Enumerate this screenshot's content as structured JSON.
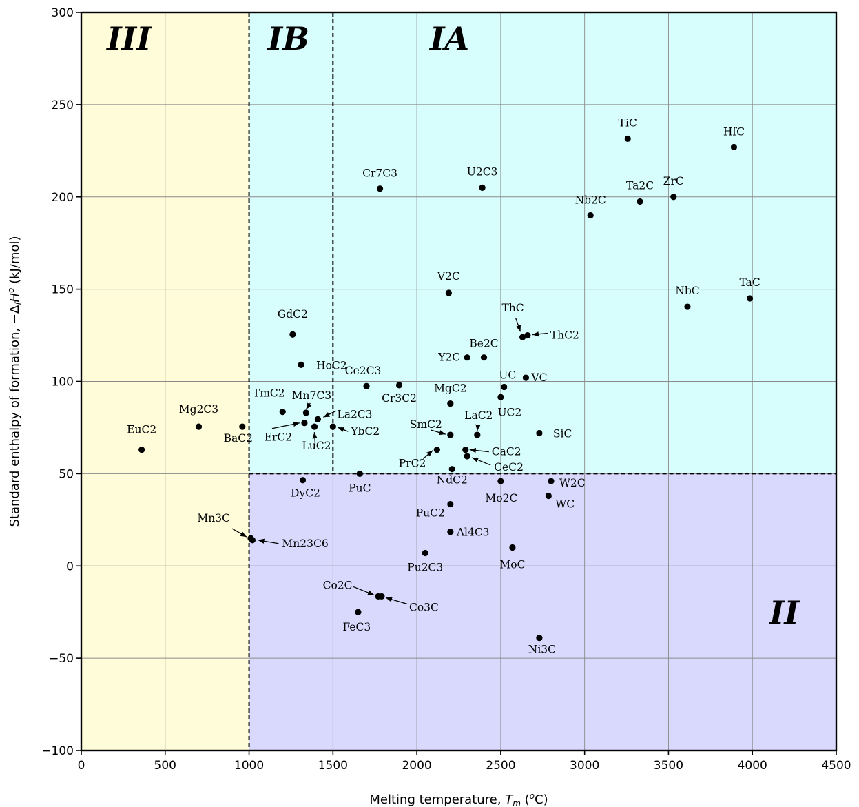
{
  "chart_data": {
    "type": "scatter",
    "title": "",
    "xlabel": "Melting temperature, ",
    "xlabel_var": "T",
    "xlabel_sub": "m",
    "xlabel_unit_open": " (",
    "xlabel_unit_sup": "o",
    "xlabel_unit_close": "C)",
    "ylabel": "Standard enthalpy of formation, −Δ",
    "ylabel_sub": "f",
    "ylabel_var": "H",
    "ylabel_sup": "o",
    "ylabel_unit": " (kJ/mol)",
    "xlim": [
      0,
      4500
    ],
    "ylim": [
      -100,
      300
    ],
    "xticks": [
      "0",
      "500",
      "1000",
      "1500",
      "2000",
      "2500",
      "3000",
      "3500",
      "4000",
      "4500"
    ],
    "yticks": [
      "−100",
      "−50",
      "0",
      "50",
      "100",
      "150",
      "200",
      "250",
      "300"
    ],
    "grid": true,
    "regions": [
      {
        "label": "III",
        "x_range": [
          0,
          1000
        ],
        "y_range": [
          -100,
          300
        ],
        "color": "#fffdd9"
      },
      {
        "label": "IB",
        "x_range": [
          1000,
          1500
        ],
        "y_range": [
          50,
          300
        ],
        "color": "#d8fdfd"
      },
      {
        "label": "IA",
        "x_range": [
          1500,
          4500
        ],
        "y_range": [
          50,
          300
        ],
        "color": "#d8fdfd"
      },
      {
        "label": "II",
        "x_range": [
          1000,
          4500
        ],
        "y_range": [
          -100,
          50
        ],
        "color": "#d9d9fd"
      }
    ],
    "points": [
      {
        "name": "EuC2",
        "x": 360,
        "y": 63
      },
      {
        "name": "Mg2C3",
        "x": 700,
        "y": 75.5
      },
      {
        "name": "BaC2",
        "x": 960,
        "y": 75.5
      },
      {
        "name": "GdC2",
        "x": 1260,
        "y": 125.5
      },
      {
        "name": "HoC2",
        "x": 1310,
        "y": 109
      },
      {
        "name": "TmC2",
        "x": 1200,
        "y": 83.5
      },
      {
        "name": "Mn7C3",
        "x": 1340,
        "y": 83
      },
      {
        "name": "La2C3",
        "x": 1410,
        "y": 79.5
      },
      {
        "name": "ErC2",
        "x": 1330,
        "y": 77.5
      },
      {
        "name": "LuC2",
        "x": 1390,
        "y": 75.5
      },
      {
        "name": "YbC2",
        "x": 1500,
        "y": 75.5
      },
      {
        "name": "DyC2",
        "x": 1320,
        "y": 46.5
      },
      {
        "name": "Mn3C",
        "x": 1010,
        "y": 15
      },
      {
        "name": "Mn23C6",
        "x": 1020,
        "y": 14
      },
      {
        "name": "Cr7C3",
        "x": 1780,
        "y": 204.5
      },
      {
        "name": "U2C3",
        "x": 2390,
        "y": 205
      },
      {
        "name": "V2C",
        "x": 2190,
        "y": 148
      },
      {
        "name": "Ce2C3",
        "x": 1700,
        "y": 97.5
      },
      {
        "name": "Cr3C2",
        "x": 1895,
        "y": 98
      },
      {
        "name": "MgC2",
        "x": 2200,
        "y": 88
      },
      {
        "name": "Y2C",
        "x": 2300,
        "y": 113
      },
      {
        "name": "Be2C",
        "x": 2400,
        "y": 113
      },
      {
        "name": "ThC",
        "x": 2630,
        "y": 124
      },
      {
        "name": "ThC2",
        "x": 2660,
        "y": 125
      },
      {
        "name": "UC",
        "x": 2520,
        "y": 97
      },
      {
        "name": "UC2",
        "x": 2500,
        "y": 91.5
      },
      {
        "name": "VC",
        "x": 2650,
        "y": 102
      },
      {
        "name": "SmC2",
        "x": 2200,
        "y": 71
      },
      {
        "name": "LaC2",
        "x": 2360,
        "y": 71
      },
      {
        "name": "PrC2",
        "x": 2120,
        "y": 63
      },
      {
        "name": "CaC2",
        "x": 2290,
        "y": 63
      },
      {
        "name": "CeC2",
        "x": 2300,
        "y": 59.5
      },
      {
        "name": "NdC2",
        "x": 2210,
        "y": 52.5
      },
      {
        "name": "SiC",
        "x": 2730,
        "y": 72
      },
      {
        "name": "PuC",
        "x": 1660,
        "y": 50
      },
      {
        "name": "Mo2C",
        "x": 2500,
        "y": 46
      },
      {
        "name": "W2C",
        "x": 2800,
        "y": 46
      },
      {
        "name": "WC",
        "x": 2785,
        "y": 38
      },
      {
        "name": "PuC2",
        "x": 2200,
        "y": 33.5
      },
      {
        "name": "Al4C3",
        "x": 2200,
        "y": 18.5
      },
      {
        "name": "MoC",
        "x": 2570,
        "y": 10
      },
      {
        "name": "Pu2C3",
        "x": 2050,
        "y": 7
      },
      {
        "name": "Co2C",
        "x": 1770,
        "y": -16.5
      },
      {
        "name": "Co3C",
        "x": 1790,
        "y": -16.5
      },
      {
        "name": "FeC3",
        "x": 1650,
        "y": -25
      },
      {
        "name": "Ni3C",
        "x": 2730,
        "y": -39
      },
      {
        "name": "TiC",
        "x": 3257,
        "y": 231.5
      },
      {
        "name": "HfC",
        "x": 3890,
        "y": 227
      },
      {
        "name": "Nb2C",
        "x": 3035,
        "y": 190
      },
      {
        "name": "Ta2C",
        "x": 3330,
        "y": 197.5
      },
      {
        "name": "ZrC",
        "x": 3530,
        "y": 200
      },
      {
        "name": "NbC",
        "x": 3613,
        "y": 140.5
      },
      {
        "name": "TaC",
        "x": 3985,
        "y": 145
      }
    ]
  }
}
